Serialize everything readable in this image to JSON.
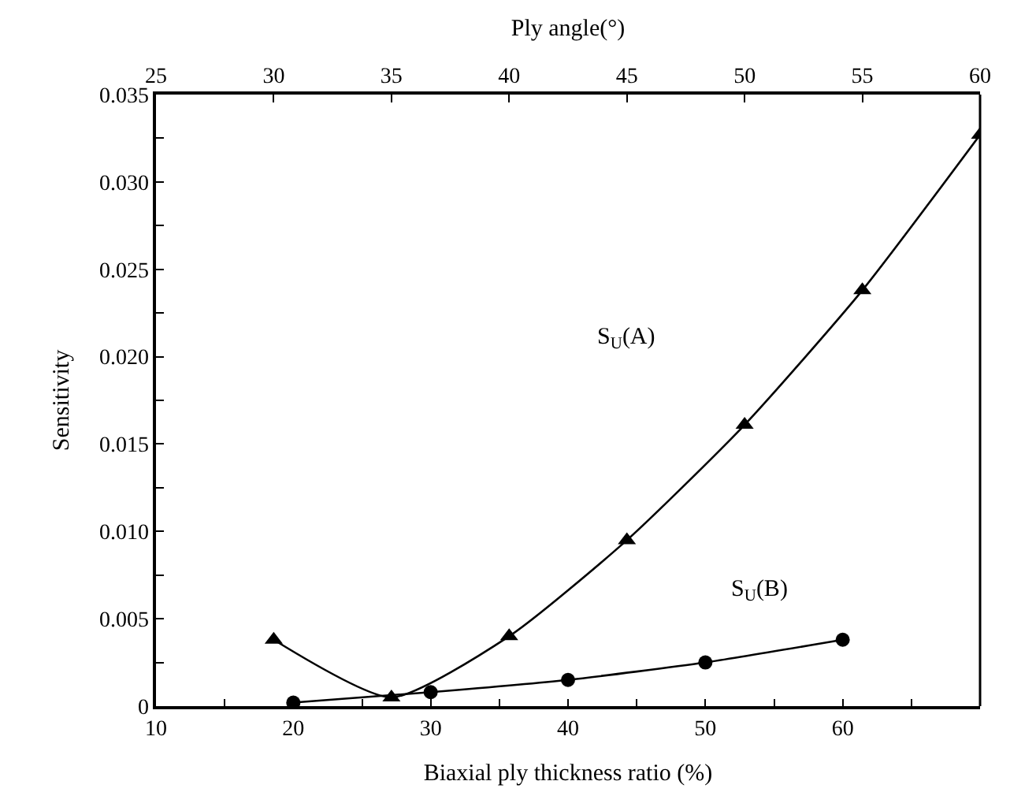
{
  "chart_data": {
    "type": "line",
    "xlabel": "Biaxial ply thickness ratio (%)",
    "ylabel": "Sensitivity",
    "x2label": "Ply angle(°)",
    "xlim": [
      10,
      70
    ],
    "xticks": [
      10,
      {
        "value": 15,
        "label": null
      },
      20,
      {
        "value": 25,
        "label": null
      },
      30,
      {
        "value": 35,
        "label": null
      },
      40,
      {
        "value": 45,
        "label": null
      },
      50,
      {
        "value": 55,
        "label": null
      },
      60,
      {
        "value": 65,
        "label": null
      }
    ],
    "x2lim": [
      25,
      60
    ],
    "x2ticks": [
      25,
      30,
      35,
      40,
      45,
      50,
      55,
      60
    ],
    "ylim": [
      0,
      0.035
    ],
    "yticks": [
      0,
      {
        "value": 0.0025,
        "label": null
      },
      {
        "value": 0.005,
        "label": "0.005"
      },
      {
        "value": 0.0075,
        "label": null
      },
      {
        "value": 0.01,
        "label": "0.010"
      },
      {
        "value": 0.0125,
        "label": null
      },
      {
        "value": 0.015,
        "label": "0.015"
      },
      {
        "value": 0.0175,
        "label": null
      },
      {
        "value": 0.02,
        "label": "0.020"
      },
      {
        "value": 0.0225,
        "label": null
      },
      {
        "value": 0.025,
        "label": "0.025"
      },
      {
        "value": 0.0275,
        "label": null
      },
      {
        "value": 0.03,
        "label": "0.030"
      },
      {
        "value": 0.0325,
        "label": null
      },
      {
        "value": 0.035,
        "label": "0.035"
      }
    ],
    "legend": false,
    "annotations": [
      "S$_{U}$(A)",
      "S$_{U}$(B)"
    ],
    "series": [
      {
        "color": "#000000",
        "axis": "x2",
        "marker": "triangle",
        "x": [
          30,
          35,
          40,
          45,
          50,
          55,
          60
        ],
        "values": [
          0.0038,
          0.0005,
          0.004,
          0.0095,
          0.0161,
          0.0238,
          0.0327
        ]
      },
      {
        "color": "#000000",
        "marker": "circle",
        "x": [
          20,
          30,
          40,
          50,
          60
        ],
        "values": [
          0.0002,
          0.0008,
          0.0015,
          0.0025,
          0.0038
        ]
      }
    ]
  }
}
